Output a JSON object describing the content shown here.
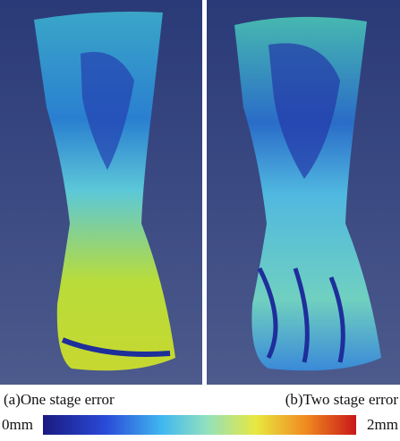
{
  "panels": [
    {
      "caption": "(a)One stage error"
    },
    {
      "caption": "(b)Two stage error"
    }
  ],
  "colorbar": {
    "min_label": "0mm",
    "max_label": "2mm"
  }
}
